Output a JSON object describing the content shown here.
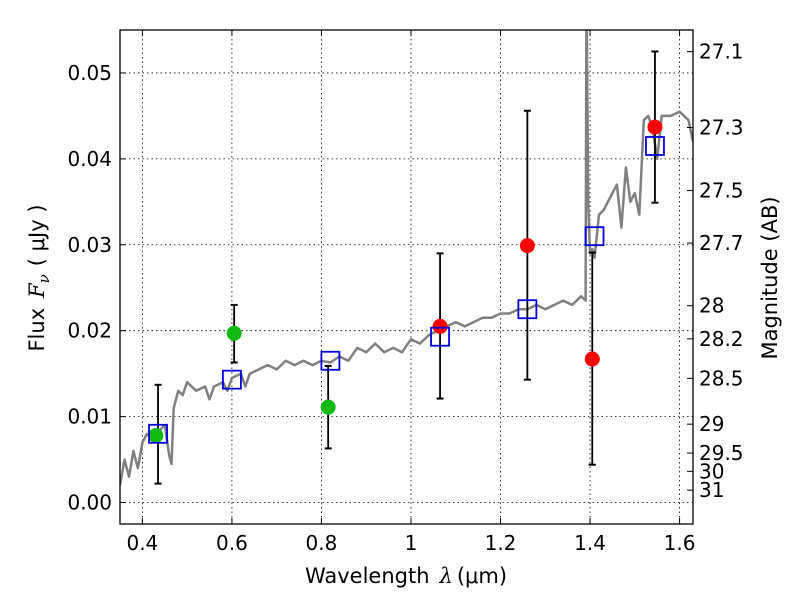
{
  "chart_data": {
    "type": "scatter",
    "xlabel": "Wavelength",
    "xlabel_symbol": "λ",
    "xlabel_unit": "(μm)",
    "ylabel": "Flux",
    "ylabel_symbol": "F",
    "ylabel_symbol_sub": "ν",
    "ylabel_unit": "( μJy )",
    "y2label": "Magnitude (AB)",
    "xlim": [
      0.35,
      1.63
    ],
    "ylim": [
      -0.0025,
      0.055
    ],
    "xticks": [
      0.4,
      0.6,
      0.8,
      1.0,
      1.2,
      1.4,
      1.6
    ],
    "xtick_labels": [
      "0.4",
      "0.6",
      "0.8",
      "1",
      "1.2",
      "1.4",
      "1.6"
    ],
    "yticks": [
      0.0,
      0.01,
      0.02,
      0.03,
      0.04,
      0.05
    ],
    "ytick_labels": [
      "0.00",
      "0.01",
      "0.02",
      "0.03",
      "0.04",
      "0.05"
    ],
    "mag_ticks": [
      {
        "label": "27.1",
        "mag": 27.1
      },
      {
        "label": "27.3",
        "mag": 27.3
      },
      {
        "label": "27.5",
        "mag": 27.5
      },
      {
        "label": "27.7",
        "mag": 27.7
      },
      {
        "label": "28",
        "mag": 28.0
      },
      {
        "label": "28.2",
        "mag": 28.2
      },
      {
        "label": "28.5",
        "mag": 28.5
      },
      {
        "label": "29",
        "mag": 29.0
      },
      {
        "label": "29.5",
        "mag": 29.5
      },
      {
        "label": "30",
        "mag": 30.0
      },
      {
        "label": "31",
        "mag": 31.0
      }
    ],
    "grid": true,
    "colors": {
      "model": "#808080",
      "green": "#11bb11",
      "red": "#ff0000",
      "square": "#0000dd",
      "errorbar": "#000000"
    },
    "series": [
      {
        "kind": "line",
        "color_key": "model",
        "x": [
          0.35,
          0.36,
          0.37,
          0.38,
          0.39,
          0.4,
          0.41,
          0.42,
          0.43,
          0.44,
          0.45,
          0.46,
          0.465,
          0.47,
          0.48,
          0.49,
          0.5,
          0.52,
          0.54,
          0.55,
          0.56,
          0.58,
          0.59,
          0.6,
          0.62,
          0.63,
          0.64,
          0.66,
          0.68,
          0.7,
          0.72,
          0.74,
          0.76,
          0.78,
          0.8,
          0.82,
          0.84,
          0.86,
          0.88,
          0.9,
          0.92,
          0.94,
          0.96,
          0.98,
          1.0,
          1.02,
          1.04,
          1.06,
          1.08,
          1.1,
          1.12,
          1.14,
          1.16,
          1.18,
          1.2,
          1.22,
          1.24,
          1.26,
          1.28,
          1.3,
          1.32,
          1.34,
          1.36,
          1.38,
          1.39,
          1.392,
          1.396,
          1.4,
          1.405,
          1.41,
          1.42,
          1.43,
          1.44,
          1.46,
          1.47,
          1.48,
          1.49,
          1.5,
          1.51,
          1.52,
          1.53,
          1.54,
          1.55,
          1.56,
          1.58,
          1.6,
          1.62,
          1.63
        ],
        "y": [
          0.002,
          0.005,
          0.003,
          0.006,
          0.004,
          0.007,
          0.008,
          0.0075,
          0.008,
          0.0085,
          0.009,
          0.0055,
          0.0045,
          0.011,
          0.013,
          0.0125,
          0.014,
          0.013,
          0.0135,
          0.012,
          0.0135,
          0.014,
          0.013,
          0.0145,
          0.015,
          0.0135,
          0.015,
          0.0155,
          0.016,
          0.0155,
          0.0165,
          0.016,
          0.0165,
          0.016,
          0.0165,
          0.0163,
          0.017,
          0.0165,
          0.018,
          0.0175,
          0.0185,
          0.0175,
          0.018,
          0.0175,
          0.019,
          0.0185,
          0.0195,
          0.02,
          0.0205,
          0.021,
          0.0205,
          0.021,
          0.0215,
          0.0215,
          0.022,
          0.022,
          0.0225,
          0.0225,
          0.023,
          0.0225,
          0.023,
          0.0235,
          0.023,
          0.024,
          0.0235,
          0.06,
          0.035,
          0.029,
          0.0295,
          0.0285,
          0.0335,
          0.034,
          0.035,
          0.037,
          0.032,
          0.039,
          0.035,
          0.036,
          0.0335,
          0.0445,
          0.045,
          0.0435,
          0.04,
          0.045,
          0.045,
          0.0455,
          0.0445,
          0.042
        ]
      },
      {
        "kind": "points",
        "marker": "circle",
        "color_key": "green",
        "x": [
          0.43,
          0.605,
          0.815
        ],
        "y": [
          0.0078,
          0.0197,
          0.0111
        ]
      },
      {
        "kind": "points",
        "marker": "circle",
        "color_key": "red",
        "x": [
          1.065,
          1.26,
          1.405,
          1.545
        ],
        "y": [
          0.0205,
          0.0299,
          0.0167,
          0.0437
        ]
      },
      {
        "kind": "points",
        "marker": "square",
        "color_key": "square",
        "x": [
          0.435,
          0.6,
          0.82,
          1.065,
          1.26,
          1.41,
          1.545
        ],
        "y": [
          0.008,
          0.0143,
          0.0165,
          0.0193,
          0.0225,
          0.031,
          0.0415
        ]
      },
      {
        "kind": "errorbars",
        "color_key": "errorbar",
        "x": [
          0.435,
          0.605,
          0.815,
          1.065,
          1.26,
          1.405,
          1.545
        ],
        "y_low": [
          0.0022,
          0.0163,
          0.0063,
          0.0121,
          0.0143,
          0.0044,
          0.0349
        ],
        "y_high": [
          0.0137,
          0.023,
          0.0159,
          0.029,
          0.0456,
          0.0291,
          0.0525
        ]
      }
    ]
  }
}
